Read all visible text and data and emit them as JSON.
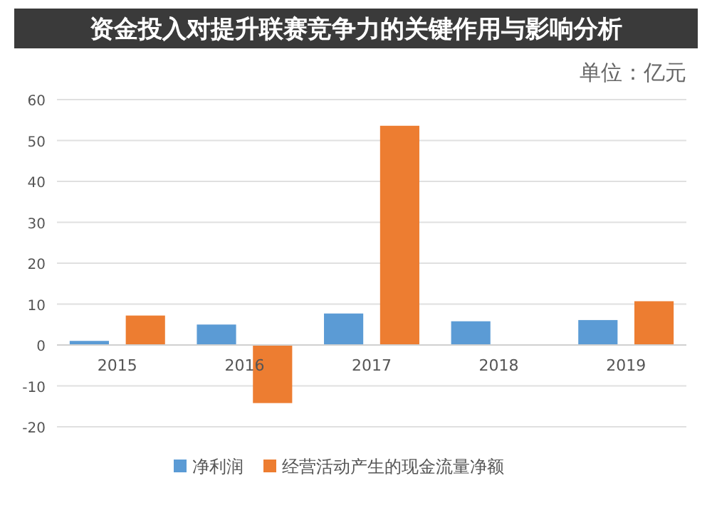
{
  "chart_data": {
    "type": "bar",
    "title": "资金投入对提升联赛竞争力的关键作用与影响分析",
    "annotations": [
      "单位：亿元"
    ],
    "categories": [
      "2015",
      "2016",
      "2017",
      "2018",
      "2019"
    ],
    "series": [
      {
        "name": "净利润",
        "color": "#5b9bd5",
        "values": [
          1,
          5,
          7.7,
          5.8,
          6.1
        ]
      },
      {
        "name": "经营活动产生的现金流量净额",
        "color": "#ed7d31",
        "values": [
          7.2,
          -14.2,
          53.6,
          null,
          10.7
        ]
      }
    ],
    "ylim": [
      -20,
      60
    ],
    "yticks": [
      -20,
      -10,
      0,
      10,
      20,
      30,
      40,
      50,
      60
    ],
    "grid": "y",
    "legend": "bottom"
  }
}
